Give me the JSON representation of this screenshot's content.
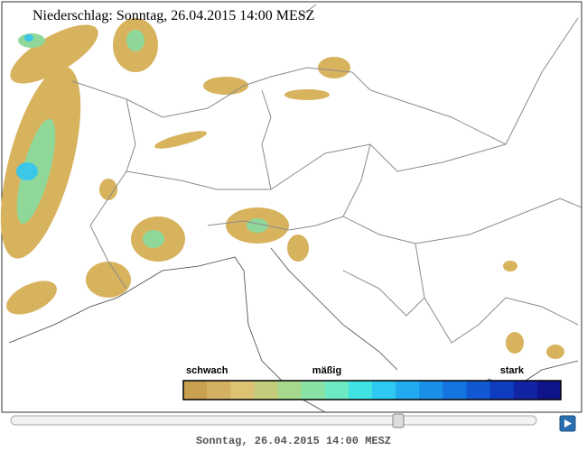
{
  "map": {
    "title": "Niederschlag: Sonntag, 26.04.2015 14:00  MESZ"
  },
  "legend": {
    "labels": [
      "schwach",
      "mäßig",
      "stark"
    ],
    "colors": [
      "#c8a050",
      "#d4b062",
      "#dcc272",
      "#c4cc7c",
      "#a6d88e",
      "#88e2a4",
      "#6ce8c2",
      "#40e2e2",
      "#2ec8f0",
      "#22aaf0",
      "#1a90e8",
      "#1474e0",
      "#1258d2",
      "#103cc0",
      "#1024a4",
      "#10148a"
    ]
  },
  "player": {
    "time_label": "Sonntag, 26.04.2015 14:00 MESZ"
  }
}
